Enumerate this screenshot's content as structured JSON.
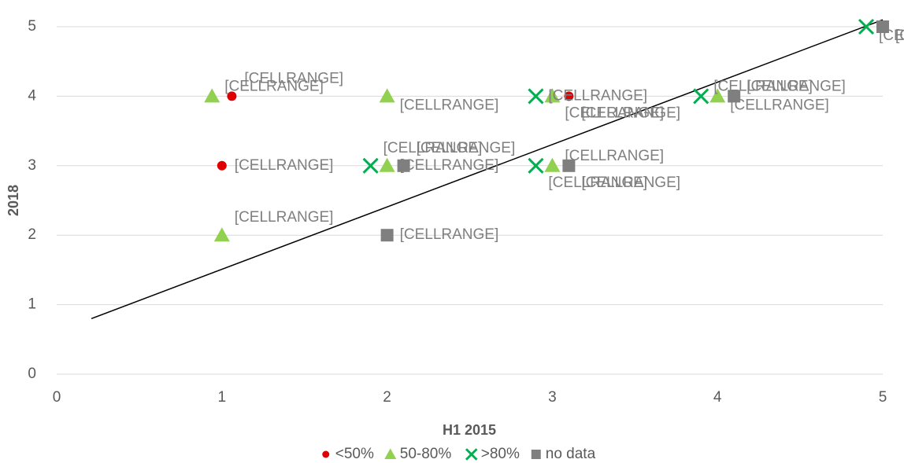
{
  "chart_data": {
    "type": "scatter",
    "x_label": "H1 2015",
    "y_label": "2018",
    "xlim": [
      0,
      5
    ],
    "xticks": [
      0,
      1,
      2,
      3,
      4,
      5
    ],
    "ylim": [
      0,
      5
    ],
    "yticks": [
      0,
      1,
      2,
      3,
      4,
      5
    ],
    "grid": true,
    "legend": "bottom",
    "series": [
      {
        "name": "<50%",
        "color": "#e00000",
        "marker": "circle",
        "x": [
          1.06,
          1,
          3.1
        ],
        "values": [
          4,
          3,
          4
        ],
        "labels": [
          "[CELLRANGE]",
          "[CELLRANGE]",
          "[CELLRANGE]"
        ]
      },
      {
        "name": "50-80%",
        "color": "#92d050",
        "marker": "triangle",
        "x": [
          0.94,
          2,
          1,
          2,
          3,
          3,
          4
        ],
        "values": [
          4,
          4,
          2,
          3,
          4,
          3,
          4
        ],
        "labels": [
          "[CELLRANGE]",
          "[CELLRANGE]",
          "[CELLRANGE]",
          "[CELLRANGE]",
          "[CELLRANGE]",
          "[CELLRANGE]",
          "[CELLRANGE]"
        ]
      },
      {
        "name": ">80%",
        "color": "#00b050",
        "marker": "x",
        "x": [
          1.9,
          2.9,
          2.9,
          3.9,
          4.9
        ],
        "values": [
          3,
          4,
          3,
          4,
          5
        ],
        "labels": [
          "[CELLRANGE]",
          "[CELLRANGE]",
          "[CELLRANGE]",
          "[CELLRANGE]",
          "[CELLRANGE]"
        ]
      },
      {
        "name": "no data",
        "color": "#7f7f7f",
        "marker": "square",
        "x": [
          2.1,
          2,
          3.1,
          4.1,
          5
        ],
        "values": [
          3,
          2,
          3,
          4,
          5
        ],
        "labels": [
          "[CELLRANGE]",
          "[CELLRANGE]",
          "[CELLRANGE]",
          "[CELLRANGE]",
          "[CELLRANGE]"
        ]
      }
    ],
    "trendline": {
      "color": "#000000",
      "x": [
        0.21,
        5
      ],
      "values": [
        0.8,
        5.1
      ]
    }
  }
}
